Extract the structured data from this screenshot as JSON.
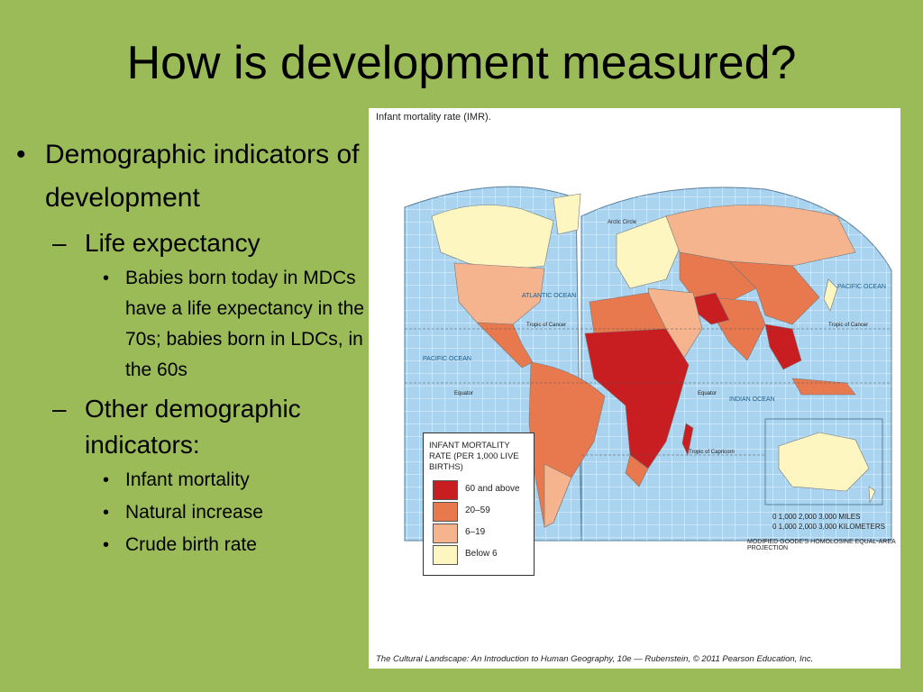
{
  "slide": {
    "title": "How is development measured?",
    "bullets": [
      {
        "text": "Demographic indicators of development"
      },
      {
        "text": "Life expectancy"
      },
      {
        "text": "Babies born today in MDCs have a life expectancy in the 70s; babies born in LDCs, in the 60s"
      },
      {
        "text": "Other demographic indicators:"
      },
      {
        "text": "Infant mortality"
      },
      {
        "text": "Natural increase"
      },
      {
        "text": "Crude birth rate"
      }
    ]
  },
  "map": {
    "caption": "Infant mortality rate (IMR).",
    "credit": "The Cultural Landscape: An Introduction to Human Geography, 10e — Rubenstein, © 2011 Pearson Education, Inc.",
    "legend": {
      "title": "INFANT MORTALITY RATE (PER 1,000 LIVE BIRTHS)",
      "items": [
        {
          "label": "60 and above",
          "color": "#c81e22"
        },
        {
          "label": "20–59",
          "color": "#e8794f"
        },
        {
          "label": "6–19",
          "color": "#f5b48d"
        },
        {
          "label": "Below 6",
          "color": "#fdf6c1"
        }
      ]
    },
    "labels": {
      "atlantic_ocean": "ATLANTIC OCEAN",
      "pacific_ocean": "PACIFIC OCEAN",
      "pacific_ocean_east": "PACIFIC OCEAN",
      "indian_ocean": "INDIAN OCEAN",
      "arctic_circle": "Arctic Circle",
      "tropic_cancer": "Tropic of Cancer",
      "tropic_cancer_east": "Tropic of Cancer",
      "tropic_capricorn": "Tropic of Capricorn",
      "equator": "Equator",
      "equator_east": "Equator"
    },
    "scale": {
      "miles": "0     1,000   2,000   3,000 MILES",
      "km": "0   1,000  2,000  3,000 KILOMETERS"
    },
    "projection": "MODIFIED GOODE'S HOMOLOSINE EQUAL-AREA PROJECTION"
  }
}
